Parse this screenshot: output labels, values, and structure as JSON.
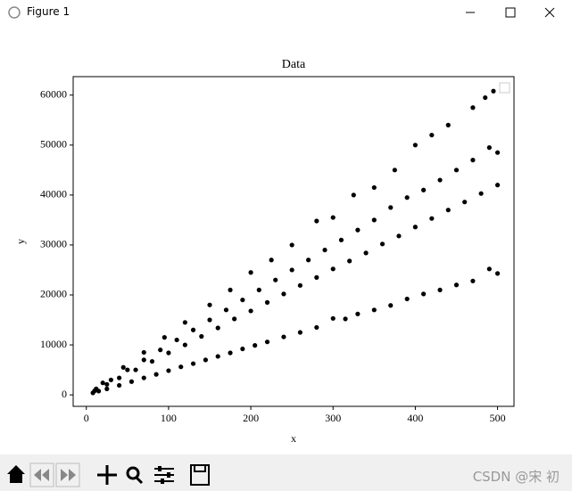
{
  "window_title": "Figure 1",
  "watermark": "CSDN @宋 初",
  "chart_data": {
    "type": "scatter",
    "title": "Data",
    "x_label": "x",
    "y_label": "y",
    "color": "#000000",
    "x": [
      8,
      15,
      25,
      40,
      55,
      70,
      85,
      100,
      115,
      130,
      145,
      160,
      175,
      190,
      205,
      220,
      240,
      260,
      280,
      300,
      315,
      330,
      350,
      370,
      390,
      410,
      430,
      450,
      470,
      490,
      500,
      10,
      25,
      40,
      60,
      80,
      100,
      120,
      140,
      160,
      180,
      200,
      220,
      240,
      260,
      280,
      300,
      320,
      340,
      360,
      380,
      400,
      420,
      440,
      460,
      480,
      500,
      12,
      30,
      50,
      70,
      90,
      110,
      130,
      150,
      170,
      190,
      210,
      230,
      250,
      270,
      290,
      310,
      330,
      350,
      370,
      390,
      410,
      430,
      450,
      470,
      490,
      500,
      20,
      45,
      70,
      95,
      120,
      150,
      175,
      200,
      225,
      250,
      280,
      300,
      325,
      350,
      375,
      400,
      420,
      440,
      470,
      485,
      495
    ],
    "values": [
      400,
      750,
      1200,
      1900,
      2650,
      3400,
      4100,
      4850,
      5600,
      6250,
      7000,
      7700,
      8400,
      9200,
      9900,
      10600,
      11600,
      12500,
      13500,
      15300,
      15200,
      16200,
      17000,
      17900,
      19200,
      20200,
      21000,
      22000,
      22800,
      25200,
      24300,
      800,
      2100,
      3400,
      5000,
      6700,
      8400,
      10000,
      11700,
      13400,
      15200,
      16800,
      18500,
      20200,
      21900,
      23500,
      25200,
      26800,
      28400,
      30200,
      31800,
      33600,
      35300,
      37000,
      38600,
      40300,
      42000,
      1200,
      3000,
      5000,
      7000,
      9000,
      11000,
      13000,
      15000,
      17000,
      19000,
      21000,
      23000,
      25000,
      27000,
      29000,
      31000,
      33000,
      35000,
      37500,
      39500,
      41000,
      43000,
      45000,
      47000,
      49500,
      48500,
      2400,
      5500,
      8500,
      11500,
      14500,
      18000,
      21000,
      24500,
      27000,
      30000,
      34800,
      35500,
      40000,
      41500,
      45000,
      50000,
      52000,
      54000,
      57500,
      59500,
      60800
    ],
    "xlim": [
      -16,
      520
    ],
    "ylim": [
      -2300,
      63700
    ],
    "xticks": [
      0,
      100,
      200,
      300,
      400,
      500
    ],
    "yticks": [
      0,
      10000,
      20000,
      30000,
      40000,
      50000,
      60000
    ]
  }
}
